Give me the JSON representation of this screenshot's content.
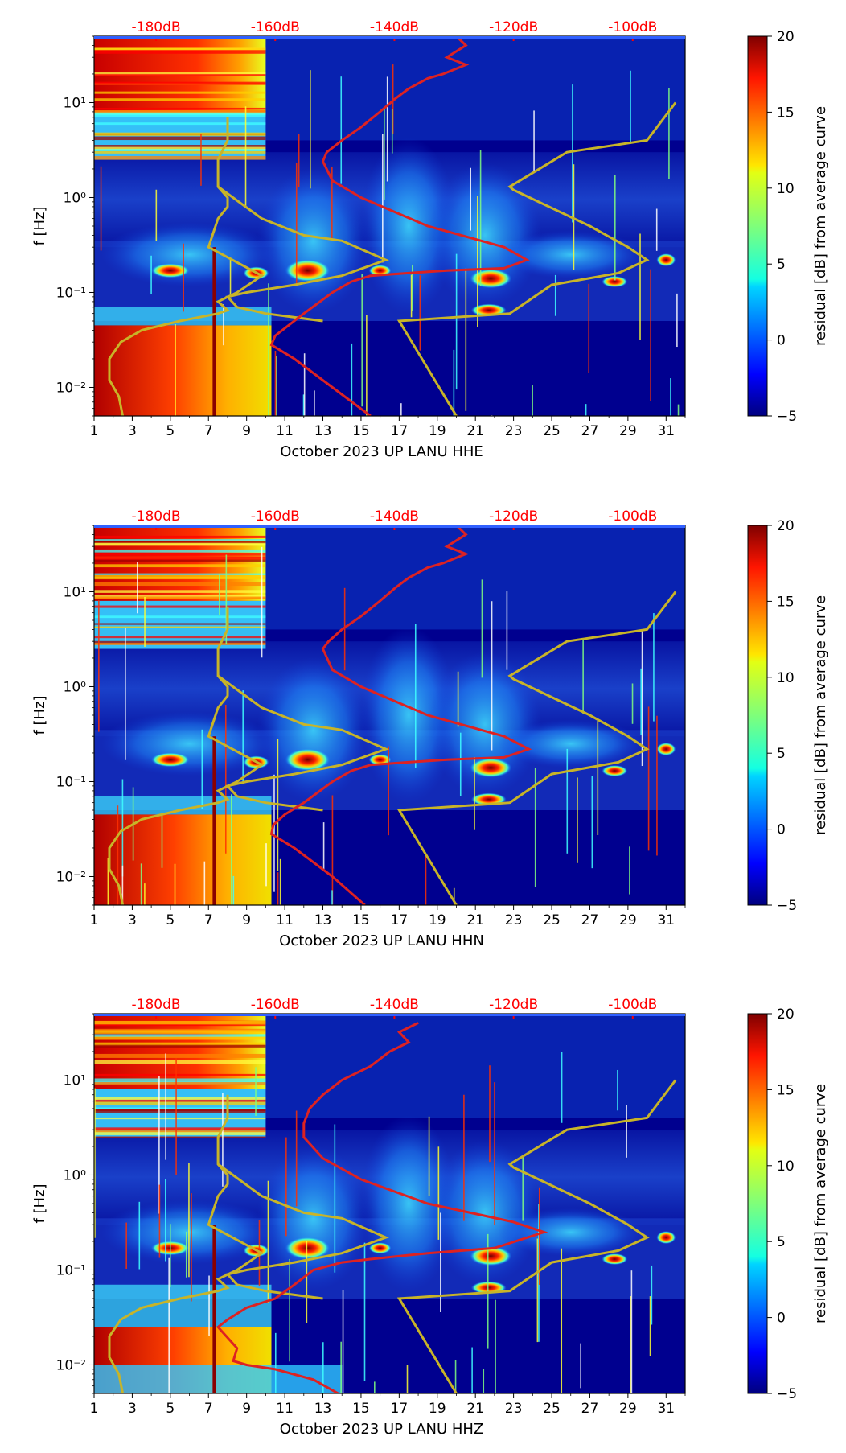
{
  "colors": {
    "background": "#00008f",
    "psd_curve": "#dd2222",
    "model_curve": "#c8b428",
    "top_axis_text": "#ff0000"
  },
  "chart_data": [
    {
      "type": "heatmap",
      "channel": "HHE",
      "xlabel": "October 2023 UP LANU  HHE",
      "ylabel": "f [Hz]",
      "colorbar_label": "residual [dB] from average curve",
      "x_ticks": [
        "1",
        "3",
        "5",
        "7",
        "9",
        "11",
        "13",
        "15",
        "17",
        "19",
        "21",
        "23",
        "25",
        "27",
        "29",
        "31"
      ],
      "xlim": [
        1,
        32
      ],
      "ylim": [
        0.005,
        50
      ],
      "y_ticks": [
        {
          "value": 0.01,
          "label": "10⁻²"
        },
        {
          "value": 0.1,
          "label": "10⁻¹"
        },
        {
          "value": 1,
          "label": "10⁰"
        },
        {
          "value": 10,
          "label": "10¹"
        }
      ],
      "top_ticks": [
        {
          "day": 4.25,
          "label": "-180dB"
        },
        {
          "day": 10.5,
          "label": "-160dB"
        },
        {
          "day": 16.75,
          "label": "-140dB"
        },
        {
          "day": 23,
          "label": "-120dB"
        },
        {
          "day": 29.25,
          "label": "-100dB"
        }
      ],
      "cbar_ticks": [
        -5,
        0,
        5,
        10,
        15,
        20
      ],
      "clim": [
        -5,
        20
      ],
      "psd_curve": {
        "x": [
          15.5,
          13.5,
          11.5,
          10.3,
          10.5,
          11.2,
          12.0,
          13.5,
          14.5,
          15.5,
          17.5,
          19.5,
          22.5,
          23.7,
          22.5,
          18.5,
          15.0,
          13.5,
          13.0,
          13.2,
          14.0,
          15.0,
          16.0,
          16.8,
          17.5,
          18.5,
          19.3,
          20.5,
          19.5,
          20.5,
          20.0
        ],
        "y": [
          0.005,
          0.01,
          0.02,
          0.028,
          0.035,
          0.045,
          0.06,
          0.1,
          0.13,
          0.15,
          0.16,
          0.17,
          0.18,
          0.22,
          0.3,
          0.5,
          1.0,
          1.5,
          2.4,
          3.0,
          4.0,
          5.5,
          8.0,
          11.0,
          14.0,
          18.0,
          20.0,
          25.0,
          30.0,
          40.0,
          50.0
        ]
      },
      "model_curve_low": {
        "x": [
          2.5,
          2.3,
          1.8,
          1.8,
          2.4,
          3.5,
          5.5,
          7.5,
          8.0,
          7.5,
          8.5,
          9.8,
          7.0,
          7.5,
          8.0,
          8.0,
          7.5,
          7.5,
          8.0,
          8.0
        ],
        "y": [
          0.005,
          0.008,
          0.012,
          0.02,
          0.03,
          0.04,
          0.05,
          0.06,
          0.065,
          0.08,
          0.1,
          0.15,
          0.3,
          0.6,
          0.8,
          1.0,
          1.3,
          2.5,
          4.0,
          7.0
        ]
      },
      "model_curve_high": {
        "x": [
          20.0,
          17.0,
          22.8,
          25.0,
          28.5,
          30.0,
          29.0,
          27.0,
          23.0,
          22.8,
          25.8,
          30.0,
          31.5
        ],
        "y": [
          0.005,
          0.05,
          0.06,
          0.12,
          0.16,
          0.22,
          0.3,
          0.5,
          1.2,
          1.3,
          3.0,
          4.0,
          10.0
        ]
      },
      "model_curve_mid": {
        "x": [
          7.5,
          9.8,
          12.0,
          14.0,
          16.3,
          14.0,
          11.5,
          9.0,
          8.0,
          8.5,
          10.0,
          13.0
        ],
        "y": [
          1.3,
          0.6,
          0.4,
          0.35,
          0.22,
          0.15,
          0.12,
          0.1,
          0.09,
          0.07,
          0.06,
          0.05
        ]
      }
    },
    {
      "type": "heatmap",
      "channel": "HHN",
      "xlabel": "October 2023 UP LANU  HHN",
      "ylabel": "f [Hz]",
      "colorbar_label": "residual [dB] from average curve",
      "x_ticks": [
        "1",
        "3",
        "5",
        "7",
        "9",
        "11",
        "13",
        "15",
        "17",
        "19",
        "21",
        "23",
        "25",
        "27",
        "29",
        "31"
      ],
      "xlim": [
        1,
        32
      ],
      "ylim": [
        0.005,
        50
      ],
      "y_ticks": [
        {
          "value": 0.01,
          "label": "10⁻²"
        },
        {
          "value": 0.1,
          "label": "10⁻¹"
        },
        {
          "value": 1,
          "label": "10⁰"
        },
        {
          "value": 10,
          "label": "10¹"
        }
      ],
      "top_ticks": [
        {
          "day": 4.25,
          "label": "-180dB"
        },
        {
          "day": 10.5,
          "label": "-160dB"
        },
        {
          "day": 16.75,
          "label": "-140dB"
        },
        {
          "day": 23,
          "label": "-120dB"
        },
        {
          "day": 29.25,
          "label": "-100dB"
        }
      ],
      "cbar_ticks": [
        -5,
        0,
        5,
        10,
        15,
        20
      ],
      "clim": [
        -5,
        20
      ],
      "psd_curve": {
        "x": [
          15.2,
          13.5,
          11.5,
          10.3,
          10.4,
          11.0,
          12.0,
          13.5,
          14.5,
          15.5,
          17.5,
          19.5,
          22.5,
          23.8,
          22.5,
          18.5,
          15.0,
          13.5,
          13.0,
          13.3,
          14.0,
          15.0,
          16.0,
          16.8,
          17.5,
          18.5,
          19.3,
          20.5,
          19.5,
          20.5,
          20.0
        ],
        "y": [
          0.005,
          0.01,
          0.02,
          0.028,
          0.035,
          0.045,
          0.06,
          0.1,
          0.13,
          0.15,
          0.16,
          0.17,
          0.18,
          0.22,
          0.3,
          0.5,
          1.0,
          1.5,
          2.5,
          3.0,
          4.0,
          5.5,
          8.0,
          11.0,
          14.0,
          18.0,
          20.0,
          25.0,
          30.0,
          40.0,
          50.0
        ]
      },
      "model_curve_low": {
        "x": [
          2.5,
          2.3,
          1.8,
          1.8,
          2.4,
          3.5,
          5.5,
          7.5,
          8.0,
          7.5,
          8.5,
          9.8,
          7.0,
          7.5,
          8.0,
          8.0,
          7.5,
          7.5,
          8.0,
          8.0
        ],
        "y": [
          0.005,
          0.008,
          0.012,
          0.02,
          0.03,
          0.04,
          0.05,
          0.06,
          0.065,
          0.08,
          0.1,
          0.15,
          0.3,
          0.6,
          0.8,
          1.0,
          1.3,
          2.5,
          4.0,
          7.0
        ]
      },
      "model_curve_high": {
        "x": [
          20.0,
          17.0,
          22.8,
          25.0,
          28.5,
          30.0,
          29.0,
          27.0,
          23.0,
          22.8,
          25.8,
          30.0,
          31.5
        ],
        "y": [
          0.005,
          0.05,
          0.06,
          0.12,
          0.16,
          0.22,
          0.3,
          0.5,
          1.2,
          1.3,
          3.0,
          4.0,
          10.0
        ]
      },
      "model_curve_mid": {
        "x": [
          7.5,
          9.8,
          12.0,
          14.0,
          16.3,
          14.0,
          11.5,
          9.0,
          8.0,
          8.5,
          10.0,
          13.0
        ],
        "y": [
          1.3,
          0.6,
          0.4,
          0.35,
          0.22,
          0.15,
          0.12,
          0.1,
          0.09,
          0.07,
          0.06,
          0.05
        ]
      }
    },
    {
      "type": "heatmap",
      "channel": "HHZ",
      "xlabel": "October 2023 UP LANU  HHZ",
      "ylabel": "f [Hz]",
      "colorbar_label": "residual [dB] from average curve",
      "x_ticks": [
        "1",
        "3",
        "5",
        "7",
        "9",
        "11",
        "13",
        "15",
        "17",
        "19",
        "21",
        "23",
        "25",
        "27",
        "29",
        "31"
      ],
      "xlim": [
        1,
        32
      ],
      "ylim": [
        0.005,
        50
      ],
      "y_ticks": [
        {
          "value": 0.01,
          "label": "10⁻²"
        },
        {
          "value": 0.1,
          "label": "10⁻¹"
        },
        {
          "value": 1,
          "label": "10⁰"
        },
        {
          "value": 10,
          "label": "10¹"
        }
      ],
      "top_ticks": [
        {
          "day": 4.25,
          "label": "-180dB"
        },
        {
          "day": 10.5,
          "label": "-160dB"
        },
        {
          "day": 16.75,
          "label": "-140dB"
        },
        {
          "day": 23,
          "label": "-120dB"
        },
        {
          "day": 29.25,
          "label": "-100dB"
        }
      ],
      "cbar_ticks": [
        -5,
        0,
        5,
        10,
        15,
        20
      ],
      "clim": [
        -5,
        20
      ],
      "psd_curve": {
        "x": [
          13.8,
          12.5,
          10.5,
          9.0,
          8.3,
          8.5,
          7.5,
          8.0,
          9.0,
          10.5,
          11.5,
          12.5,
          14.0,
          15.5,
          18.5,
          22.0,
          24.6,
          23.0,
          18.5,
          15.0,
          13.0,
          12.0,
          12.0,
          12.3,
          13.0,
          14.0,
          15.5,
          16.5,
          17.5,
          17.0,
          18.0
        ],
        "y": [
          0.005,
          0.007,
          0.009,
          0.01,
          0.011,
          0.015,
          0.025,
          0.03,
          0.04,
          0.05,
          0.07,
          0.1,
          0.12,
          0.13,
          0.15,
          0.17,
          0.25,
          0.32,
          0.5,
          0.9,
          1.5,
          2.5,
          3.5,
          5.0,
          7.0,
          10.0,
          14.0,
          20.0,
          25.0,
          32.0,
          40.0
        ]
      },
      "model_curve_low": {
        "x": [
          2.5,
          2.3,
          1.8,
          1.8,
          2.4,
          3.5,
          5.5,
          7.5,
          8.0,
          7.5,
          8.5,
          9.8,
          7.0,
          7.5,
          8.0,
          8.0,
          7.5,
          7.5,
          8.0,
          8.0
        ],
        "y": [
          0.005,
          0.008,
          0.012,
          0.02,
          0.03,
          0.04,
          0.05,
          0.06,
          0.065,
          0.08,
          0.1,
          0.15,
          0.3,
          0.6,
          0.8,
          1.0,
          1.3,
          2.5,
          4.0,
          7.0
        ]
      },
      "model_curve_high": {
        "x": [
          20.0,
          17.0,
          22.8,
          25.0,
          28.5,
          30.0,
          29.0,
          27.0,
          23.0,
          22.8,
          25.8,
          30.0,
          31.5
        ],
        "y": [
          0.005,
          0.05,
          0.06,
          0.12,
          0.16,
          0.22,
          0.3,
          0.5,
          1.2,
          1.3,
          3.0,
          4.0,
          10.0
        ]
      },
      "model_curve_mid": {
        "x": [
          7.5,
          9.8,
          12.0,
          14.0,
          16.3,
          14.0,
          11.5,
          9.0,
          8.0,
          8.5,
          10.0,
          13.0
        ],
        "y": [
          1.3,
          0.6,
          0.4,
          0.35,
          0.22,
          0.15,
          0.12,
          0.1,
          0.09,
          0.07,
          0.06,
          0.05
        ]
      }
    }
  ]
}
